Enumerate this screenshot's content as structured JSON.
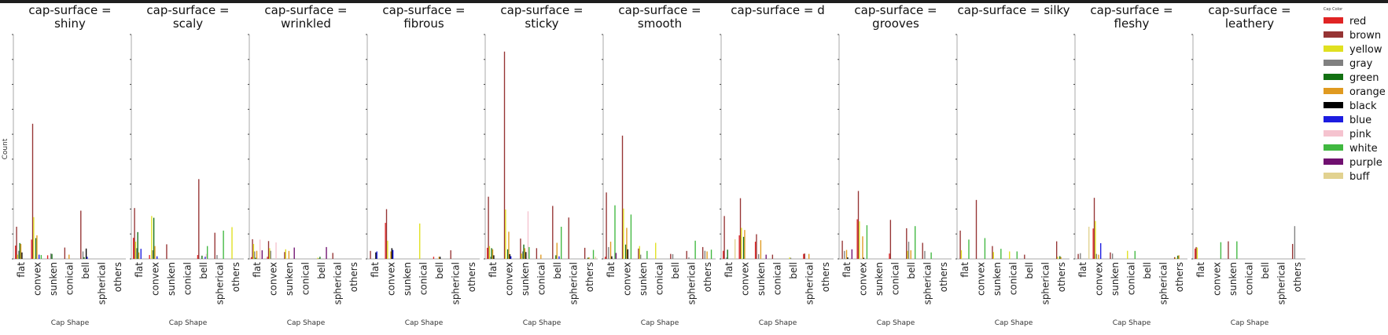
{
  "chart_data": {
    "type": "bar",
    "xlabel": "Cap Shape",
    "ylabel": "Count",
    "ylim": [
      0,
      1800
    ],
    "ytick_step": 200,
    "y_tick_labels_shown": false,
    "legend": {
      "title": "Cap Color",
      "placement": "right"
    },
    "categories": [
      "flat",
      "convex",
      "sunken",
      "conical",
      "bell",
      "spherical",
      "others"
    ],
    "hue_order": [
      "red",
      "brown",
      "yellow",
      "gray",
      "green",
      "orange",
      "black",
      "blue",
      "pink",
      "white",
      "purple",
      "buff"
    ],
    "hue_colors": {
      "red": "#e02424",
      "brown": "#963434",
      "yellow": "#e0e020",
      "gray": "#808080",
      "green": "#127012",
      "orange": "#e09a20",
      "black": "#000000",
      "blue": "#1c1ce0",
      "pink": "#f5c3cf",
      "white": "#40b840",
      "purple": "#701070",
      "buff": "#e2d290"
    },
    "facets": [
      {
        "title": "cap-surface = shiny",
        "values": {
          "flat": {
            "red": 107,
            "brown": 258,
            "yellow": 34,
            "gray": 65,
            "green": 127,
            "orange": 120,
            "black": 52
          },
          "convex": {
            "red": 155,
            "brown": 1084,
            "yellow": 335,
            "green": 167,
            "orange": 189,
            "blue": 34,
            "white": 31
          },
          "sunken": {
            "red": 29,
            "gray": 43,
            "green": 40
          },
          "conical": {
            "brown": 91,
            "orange": 34
          },
          "bell": {
            "brown": 387,
            "gray": 60,
            "green": 14,
            "black": 83,
            "blue": 17
          },
          "spherical": {},
          "others": {}
        }
      },
      {
        "title": "cap-surface = scaly",
        "values": {
          "flat": {
            "red": 169,
            "brown": 408,
            "yellow": 138,
            "gray": 86,
            "green": 215,
            "orange": 52,
            "blue": 81
          },
          "convex": {
            "red": 31,
            "yellow": 344,
            "gray": 69,
            "green": 330,
            "orange": 103,
            "blue": 21
          },
          "sunken": {
            "brown": 117
          },
          "conical": {},
          "bell": {
            "red": 31,
            "brown": 640,
            "green": 26,
            "blue": 17,
            "pink": 40,
            "white": 103
          },
          "spherical": {
            "brown": 210,
            "gray": 31,
            "white": 227
          },
          "others": {
            "yellow": 255
          }
        }
      },
      {
        "title": "cap-surface = wrinkled",
        "values": {
          "flat": {
            "red": 14,
            "brown": 158,
            "yellow": 120,
            "gray": 60,
            "green": 9,
            "orange": 65,
            "pink": 155,
            "purple": 69
          },
          "convex": {
            "red": 17,
            "brown": 143,
            "yellow": 86,
            "gray": 65,
            "pink": 132
          },
          "sunken": {
            "brown": 55,
            "yellow": 77,
            "orange": 64,
            "purple": 91
          },
          "conical": {},
          "bell": {
            "yellow": 9,
            "gray": 5,
            "green": 17,
            "purple": 95
          },
          "spherical": {
            "brown": 48
          },
          "others": {}
        }
      },
      {
        "title": "cap-surface = fibrous",
        "values": {
          "flat": {
            "brown": 64,
            "black": 52,
            "blue": 60
          },
          "convex": {
            "red": 289,
            "brown": 399,
            "yellow": 146,
            "orange": 60,
            "black": 86,
            "blue": 72
          },
          "sunken": {},
          "conical": {
            "yellow": 284
          },
          "bell": {
            "red": 17,
            "orange": 17,
            "black": 17
          },
          "spherical": {
            "brown": 69
          },
          "others": {}
        }
      },
      {
        "title": "cap-surface = sticky",
        "values": {
          "flat": {
            "red": 89,
            "brown": 499,
            "yellow": 103,
            "gray": 17,
            "green": 86,
            "orange": 77,
            "black": 29
          },
          "convex": {
            "brown": 1663,
            "yellow": 396,
            "green": 77,
            "orange": 218,
            "black": 38,
            "blue": 22
          },
          "sunken": {
            "brown": 163,
            "yellow": 43,
            "gray": 60,
            "green": 115,
            "orange": 86,
            "black": 55,
            "pink": 382,
            "white": 95
          },
          "conical": {
            "brown": 86,
            "orange": 34
          },
          "bell": {
            "brown": 425,
            "green": 29,
            "orange": 129,
            "blue": 21,
            "white": 258
          },
          "spherical": {
            "brown": 332
          },
          "others": {
            "brown": 89,
            "green": 10,
            "orange": 12,
            "white": 72,
            "buff": 17
          }
        }
      },
      {
        "title": "cap-surface = smooth",
        "values": {
          "flat": {
            "red": 17,
            "brown": 533,
            "gray": 95,
            "orange": 138,
            "black": 21,
            "white": 430,
            "purple": 48
          },
          "convex": {
            "brown": 989,
            "yellow": 404,
            "green": 115,
            "orange": 249,
            "black": 77,
            "white": 356
          },
          "sunken": {
            "brown": 83,
            "yellow": 103,
            "gray": 34,
            "white": 64
          },
          "conical": {
            "yellow": 129
          },
          "bell": {
            "brown": 40,
            "gray": 38
          },
          "spherical": {
            "brown": 64,
            "gray": 12,
            "white": 146
          },
          "others": {
            "brown": 95,
            "gray": 65,
            "orange": 60,
            "white": 74
          }
        }
      },
      {
        "title": "cap-surface = d",
        "values": {
          "flat": {
            "red": 65,
            "brown": 344,
            "gray": 10,
            "green": 74,
            "buff": 158
          },
          "convex": {
            "red": 189,
            "brown": 487,
            "yellow": 249,
            "green": 177,
            "orange": 232
          },
          "sunken": {
            "red": 138,
            "brown": 198,
            "gray": 38,
            "orange": 150,
            "purple": 34
          },
          "conical": {
            "brown": 34
          },
          "bell": {
            "yellow": 12,
            "gray": 9
          },
          "spherical": {
            "red": 40,
            "brown": 43,
            "orange": 40
          },
          "others": {}
        }
      },
      {
        "title": "cap-surface = grooves",
        "values": {
          "flat": {
            "brown": 146,
            "gray": 64,
            "orange": 72,
            "black": 12,
            "purple": 77
          },
          "convex": {
            "red": 318,
            "brown": 545,
            "yellow": 301,
            "orange": 181,
            "black": 9,
            "white": 270
          },
          "sunken": {},
          "conical": {
            "red": 43,
            "brown": 313
          },
          "bell": {
            "brown": 246,
            "yellow": 65,
            "gray": 138,
            "orange": 69,
            "white": 263
          },
          "spherical": {
            "brown": 129,
            "gray": 64,
            "white": 52
          },
          "others": {}
        }
      },
      {
        "title": "cap-surface = silky",
        "values": {
          "flat": {
            "brown": 227,
            "yellow": 69,
            "white": 155
          },
          "convex": {
            "brown": 473,
            "white": 167
          },
          "sunken": {
            "brown": 103,
            "yellow": 55,
            "white": 81
          },
          "conical": {
            "yellow": 60,
            "white": 60
          },
          "bell": {
            "brown": 34
          },
          "spherical": {},
          "others": {
            "brown": 141,
            "yellow": 17,
            "green": 22,
            "orange": 15
          }
        }
      },
      {
        "title": "cap-surface = fleshy",
        "values": {
          "flat": {
            "brown": 40,
            "gray": 46,
            "buff": 258
          },
          "convex": {
            "red": 244,
            "brown": 490,
            "yellow": 304,
            "gray": 40,
            "orange": 34,
            "blue": 126
          },
          "sunken": {
            "brown": 52,
            "gray": 43
          },
          "conical": {
            "yellow": 65,
            "white": 64
          },
          "bell": {},
          "spherical": {},
          "others": {
            "brown": 14,
            "yellow": 10,
            "green": 26,
            "orange": 29
          }
        }
      },
      {
        "title": "cap-surface = leathery",
        "values": {
          "flat": {
            "red": 83,
            "brown": 95,
            "yellow": 91
          },
          "convex": {
            "white": 134
          },
          "sunken": {
            "brown": 141,
            "white": 141
          },
          "conical": {},
          "bell": {},
          "spherical": {},
          "others": {
            "brown": 120,
            "gray": 263
          }
        }
      }
    ]
  }
}
